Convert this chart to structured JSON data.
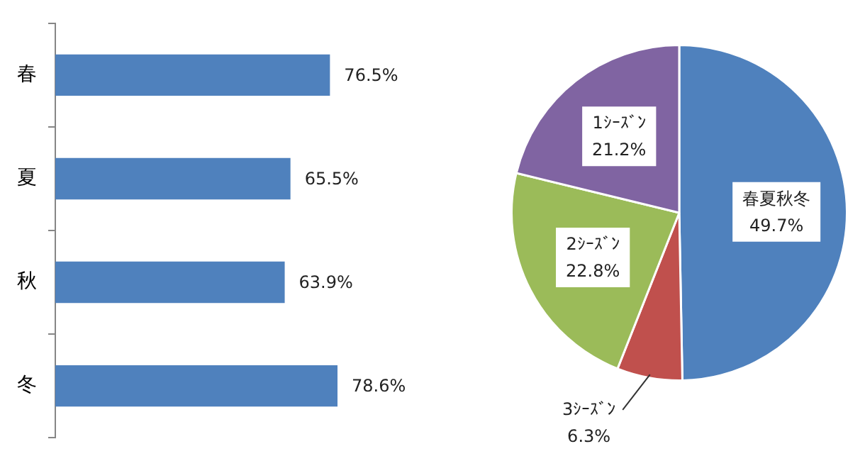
{
  "chart_data": [
    {
      "type": "bar",
      "orientation": "horizontal",
      "categories": [
        "春",
        "夏",
        "秋",
        "冬"
      ],
      "values": [
        76.5,
        65.5,
        63.9,
        78.6
      ],
      "color": "#4f81bd",
      "value_labels": [
        "76.5%",
        "65.5%",
        "63.9%",
        "78.6%"
      ],
      "legend": false
    },
    {
      "type": "pie",
      "categories": [
        "春夏秋冬",
        "3ｼｰｽﾞﾝ",
        "2ｼｰｽﾞﾝ",
        "1ｼｰｽﾞﾝ"
      ],
      "values": [
        49.7,
        6.3,
        22.8,
        21.2
      ],
      "colors": [
        "#4f81bd",
        "#c0504d",
        "#9bbb59",
        "#8064a2"
      ],
      "value_labels": [
        "49.7%",
        "6.3%",
        "22.8%",
        "21.2%"
      ],
      "legend": false
    }
  ]
}
